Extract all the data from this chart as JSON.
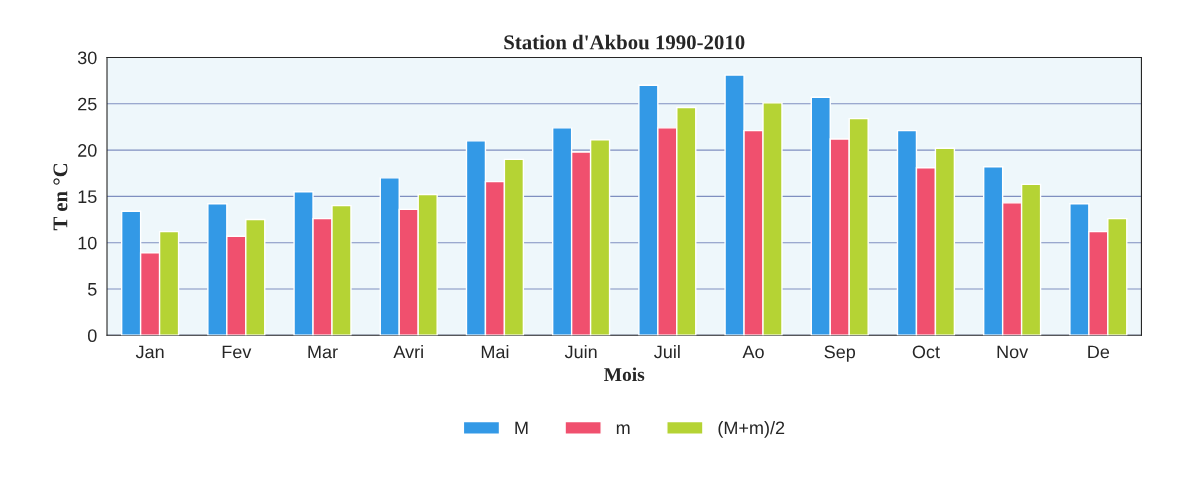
{
  "chart_data": {
    "type": "bar",
    "title": "Station d'Akbou 1990-2010",
    "xlabel": "Mois",
    "ylabel": "T en °C",
    "categories": [
      "Jan",
      "Fev",
      "Mar",
      "Avri",
      "Mai",
      "Juin",
      "Juil",
      "Ao",
      "Sep",
      "Oct",
      "Nov",
      "De"
    ],
    "series": [
      {
        "name": "M",
        "color": "#3399e6",
        "values": [
          13.4,
          14.2,
          15.5,
          17.0,
          21.0,
          22.4,
          27.0,
          28.1,
          25.7,
          22.1,
          18.2,
          14.2
        ]
      },
      {
        "name": "m",
        "color": "#f0506e",
        "values": [
          8.9,
          10.7,
          12.6,
          13.6,
          16.6,
          19.8,
          22.4,
          22.1,
          21.2,
          18.1,
          14.3,
          11.2
        ]
      },
      {
        "name": "(M+m)/2",
        "color": "#b5d334",
        "values": [
          11.2,
          12.5,
          14.0,
          15.2,
          19.0,
          21.1,
          24.6,
          25.1,
          23.4,
          20.2,
          16.3,
          12.6
        ]
      }
    ],
    "ylim": [
      0,
      30
    ],
    "yticks": [
      0,
      5,
      10,
      15,
      20,
      25,
      30
    ],
    "grid": "y",
    "legend": "bottom"
  }
}
